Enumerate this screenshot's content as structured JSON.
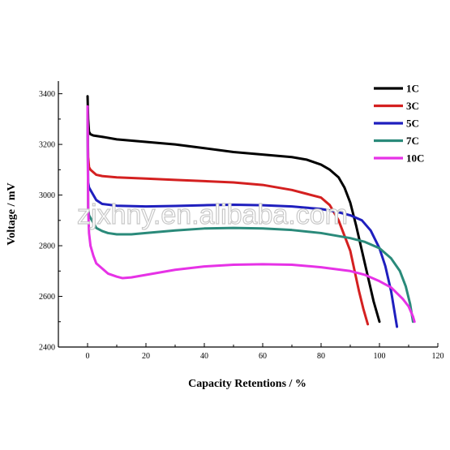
{
  "watermark": "zjxhny.en.alibaba.com",
  "chart_data": {
    "type": "line",
    "title": "",
    "xlabel": "Capacity Retentions / %",
    "ylabel": "Voltage / mV",
    "xlim": [
      -10,
      120
    ],
    "ylim": [
      2400,
      3450
    ],
    "xticks": [
      0,
      20,
      40,
      60,
      80,
      100,
      120
    ],
    "yticks": [
      2400,
      2600,
      2800,
      3000,
      3200,
      3400
    ],
    "grid": false,
    "legend_position": "top-right",
    "series": [
      {
        "name": "1C",
        "color": "#000000",
        "x": [
          0,
          0.2,
          0.5,
          1,
          2,
          5,
          10,
          20,
          30,
          40,
          50,
          60,
          70,
          75,
          80,
          83,
          86,
          88,
          90,
          92,
          94,
          96,
          98,
          100
        ],
        "y": [
          3390,
          3300,
          3250,
          3240,
          3235,
          3230,
          3220,
          3210,
          3200,
          3185,
          3170,
          3160,
          3150,
          3140,
          3120,
          3100,
          3070,
          3030,
          2970,
          2880,
          2780,
          2680,
          2580,
          2500
        ]
      },
      {
        "name": "3C",
        "color": "#d42020",
        "x": [
          0,
          0.2,
          0.5,
          1,
          2,
          3,
          5,
          10,
          20,
          30,
          40,
          50,
          60,
          70,
          75,
          80,
          83,
          86,
          88,
          90,
          91.5,
          93,
          94.5,
          96
        ],
        "y": [
          3300,
          3150,
          3110,
          3100,
          3090,
          3080,
          3075,
          3070,
          3065,
          3060,
          3055,
          3050,
          3040,
          3020,
          3005,
          2990,
          2960,
          2900,
          2840,
          2780,
          2700,
          2620,
          2550,
          2490
        ]
      },
      {
        "name": "5C",
        "color": "#1f1fbe",
        "x": [
          0,
          0.2,
          0.5,
          1,
          2,
          3,
          5,
          10,
          20,
          30,
          40,
          50,
          60,
          70,
          80,
          85,
          90,
          94,
          97,
          100,
          102,
          104,
          106
        ],
        "y": [
          3300,
          3050,
          3030,
          3020,
          3000,
          2980,
          2965,
          2958,
          2955,
          2957,
          2960,
          2962,
          2960,
          2955,
          2945,
          2935,
          2920,
          2900,
          2860,
          2790,
          2720,
          2620,
          2480
        ]
      },
      {
        "name": "7C",
        "color": "#2a8a7a",
        "x": [
          0,
          0.2,
          0.5,
          1,
          2,
          3,
          5,
          7,
          10,
          15,
          20,
          30,
          40,
          50,
          60,
          70,
          80,
          90,
          95,
          100,
          104,
          107,
          109,
          110.5,
          111.5
        ],
        "y": [
          3340,
          2950,
          2920,
          2910,
          2890,
          2870,
          2858,
          2850,
          2845,
          2845,
          2850,
          2860,
          2868,
          2870,
          2868,
          2862,
          2850,
          2830,
          2815,
          2790,
          2750,
          2700,
          2640,
          2570,
          2500
        ]
      },
      {
        "name": "10C",
        "color": "#e632e6",
        "x": [
          0,
          0.2,
          0.5,
          1,
          2,
          3,
          5,
          7,
          10,
          12,
          15,
          20,
          30,
          40,
          50,
          60,
          70,
          80,
          90,
          95,
          100,
          104,
          108,
          110,
          111.5,
          112
        ],
        "y": [
          3350,
          2950,
          2850,
          2800,
          2760,
          2730,
          2710,
          2690,
          2678,
          2672,
          2675,
          2685,
          2705,
          2718,
          2725,
          2727,
          2725,
          2715,
          2700,
          2685,
          2660,
          2635,
          2590,
          2560,
          2520,
          2500
        ]
      }
    ]
  }
}
